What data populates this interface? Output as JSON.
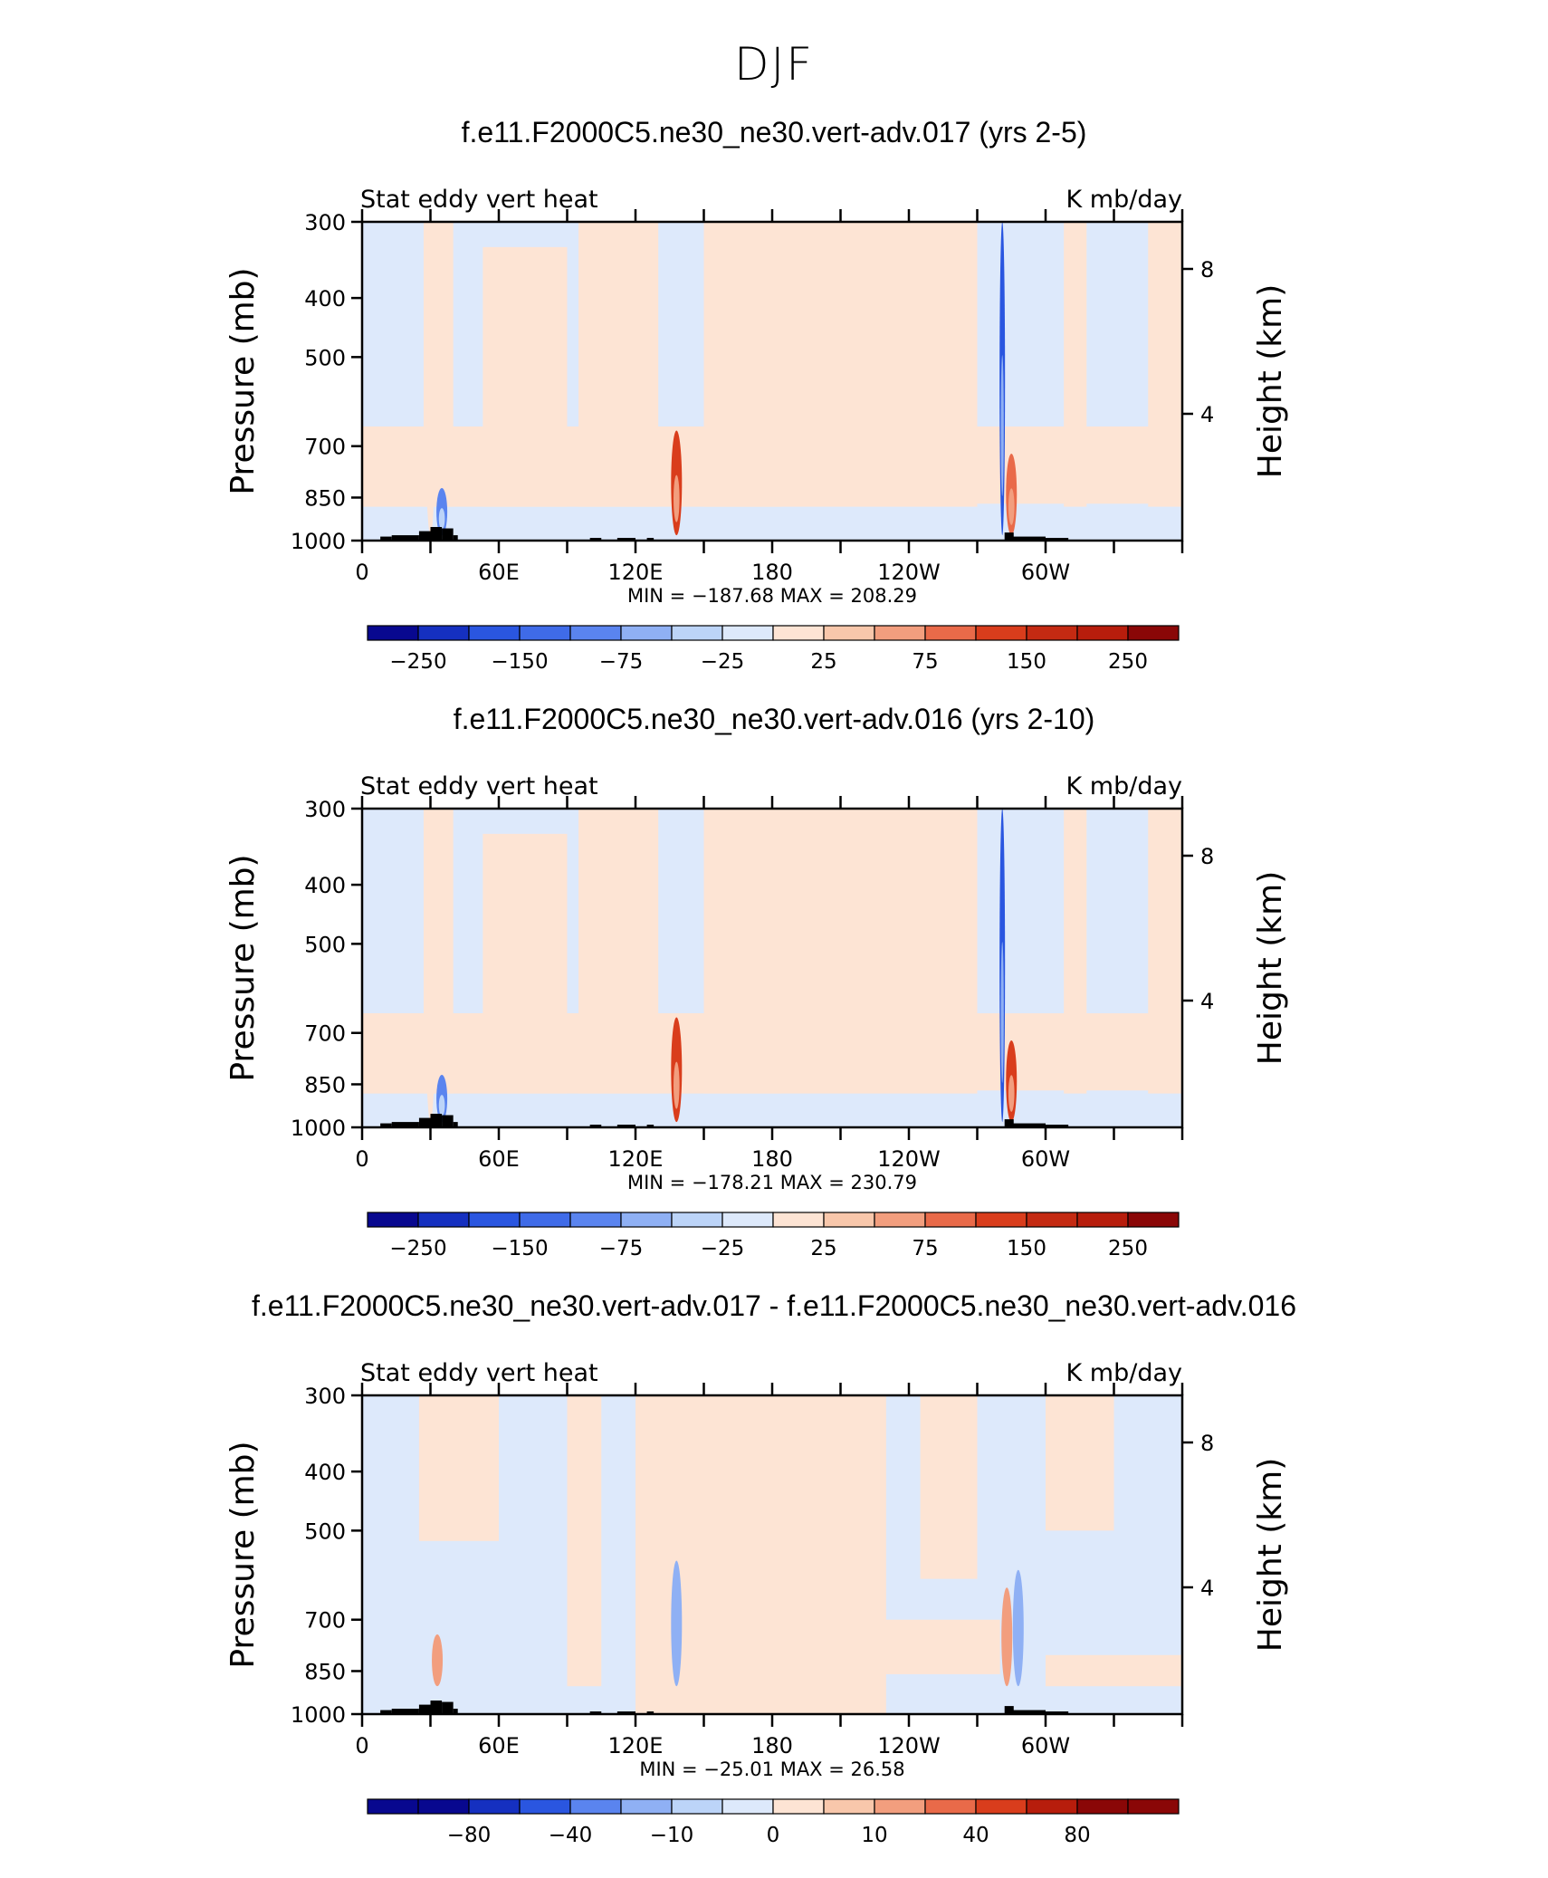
{
  "main_title": "DJF",
  "chart_data": [
    {
      "type": "heatmap",
      "title": "f.e11.F2000C5.ne30_ne30.vert-adv.017 (yrs 2-5)",
      "left_string": "Stat eddy vert heat",
      "right_string": "K mb/day",
      "ylabel": "Pressure (mb)",
      "y2label": "Height (km)",
      "xlim": [
        0,
        360
      ],
      "ylim_pressure": [
        1000,
        300
      ],
      "y_ticks": [
        "300",
        "400",
        "500",
        "700",
        "850",
        "1000"
      ],
      "y2_ticks": [
        "8",
        "4"
      ],
      "x_ticks": [
        "0",
        "60E",
        "120E",
        "180",
        "120W",
        "60W"
      ],
      "min_max": "MIN = −187.68   MAX = 208.29",
      "colorbar_labels": [
        "−250",
        "−150",
        "−75",
        "−25",
        "25",
        "75",
        "150",
        "250"
      ],
      "features": [
        {
          "lon": 30,
          "p_top": 320,
          "value": 20
        },
        {
          "lon": 138,
          "p_top": 660,
          "value": 110
        },
        {
          "lon": 281,
          "p_top": 300,
          "value": -150
        },
        {
          "lon": 285,
          "p_top": 720,
          "value": 100
        },
        {
          "lon": 35,
          "p_top": 820,
          "value": -120
        }
      ]
    },
    {
      "type": "heatmap",
      "title": "f.e11.F2000C5.ne30_ne30.vert-adv.016 (yrs 2-10)",
      "left_string": "Stat eddy vert heat",
      "right_string": "K mb/day",
      "ylabel": "Pressure (mb)",
      "y2label": "Height (km)",
      "xlim": [
        0,
        360
      ],
      "ylim_pressure": [
        1000,
        300
      ],
      "y_ticks": [
        "300",
        "400",
        "500",
        "700",
        "850",
        "1000"
      ],
      "y2_ticks": [
        "8",
        "4"
      ],
      "x_ticks": [
        "0",
        "60E",
        "120E",
        "180",
        "120W",
        "60W"
      ],
      "min_max": "MIN = −178.21   MAX = 230.79",
      "colorbar_labels": [
        "−250",
        "−150",
        "−75",
        "−25",
        "25",
        "75",
        "150",
        "250"
      ],
      "features": [
        {
          "lon": 30,
          "p_top": 320,
          "value": 20
        },
        {
          "lon": 138,
          "p_top": 660,
          "value": 120
        },
        {
          "lon": 281,
          "p_top": 300,
          "value": -150
        },
        {
          "lon": 285,
          "p_top": 720,
          "value": 110
        },
        {
          "lon": 35,
          "p_top": 820,
          "value": -120
        }
      ]
    },
    {
      "type": "heatmap",
      "title": "f.e11.F2000C5.ne30_ne30.vert-adv.017 - f.e11.F2000C5.ne30_ne30.vert-adv.016",
      "left_string": "Stat eddy vert heat",
      "right_string": "K mb/day",
      "ylabel": "Pressure (mb)",
      "y2label": "Height (km)",
      "xlim": [
        0,
        360
      ],
      "ylim_pressure": [
        1000,
        300
      ],
      "y_ticks": [
        "300",
        "400",
        "500",
        "700",
        "850",
        "1000"
      ],
      "y2_ticks": [
        "8",
        "4"
      ],
      "x_ticks": [
        "0",
        "60E",
        "120E",
        "180",
        "120W",
        "60W"
      ],
      "min_max": "MIN = −25.01   MAX =   26.58",
      "colorbar_labels": [
        "−80",
        "−40",
        "−10",
        "0",
        "10",
        "40",
        "80"
      ],
      "features": [
        {
          "lon": 138,
          "p_top": 560,
          "value": -15
        },
        {
          "lon": 33,
          "p_top": 740,
          "value": 15
        },
        {
          "lon": 283,
          "p_top": 620,
          "value": 12
        },
        {
          "lon": 288,
          "p_top": 580,
          "value": -12
        }
      ]
    }
  ],
  "colors": {
    "palette": [
      "#08088f",
      "#1530c0",
      "#2a56e0",
      "#5a84ef",
      "#8fb0f4",
      "#bcd4f8",
      "#dde9fb",
      "#fde4d4",
      "#f8c7ab",
      "#f29e7e",
      "#e96a49",
      "#d93d1c",
      "#b71d0c",
      "#8a0707"
    ],
    "positive_fill": "#fde4d4",
    "negative_fill": "#dde9fb",
    "topography": "#000000"
  }
}
